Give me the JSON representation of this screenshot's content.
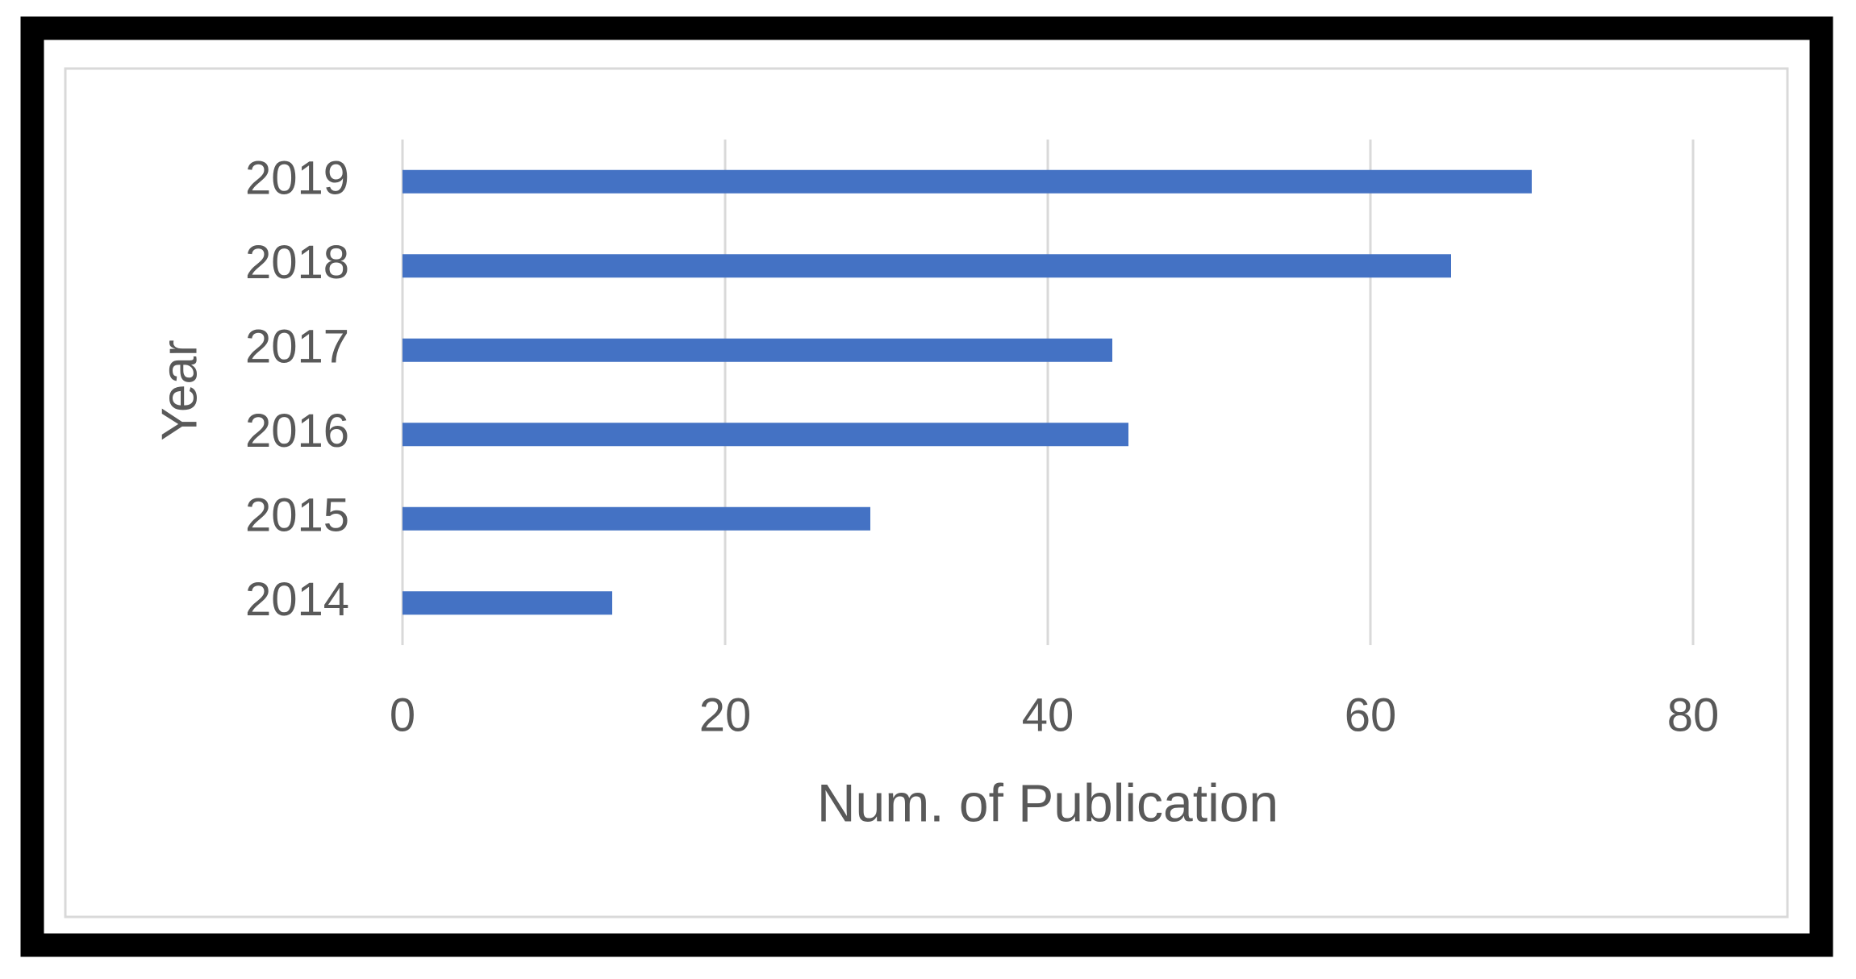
{
  "chart_data": {
    "type": "bar",
    "orientation": "horizontal",
    "categories": [
      "2014",
      "2015",
      "2016",
      "2017",
      "2018",
      "2019"
    ],
    "values": [
      13,
      29,
      45,
      44,
      65,
      70
    ],
    "color": "#4472c4",
    "xlabel": "Num. of Publication",
    "ylabel": "Year",
    "xlim": [
      0,
      80
    ],
    "xticks": [
      0,
      20,
      40,
      60,
      80
    ],
    "grid": true
  }
}
